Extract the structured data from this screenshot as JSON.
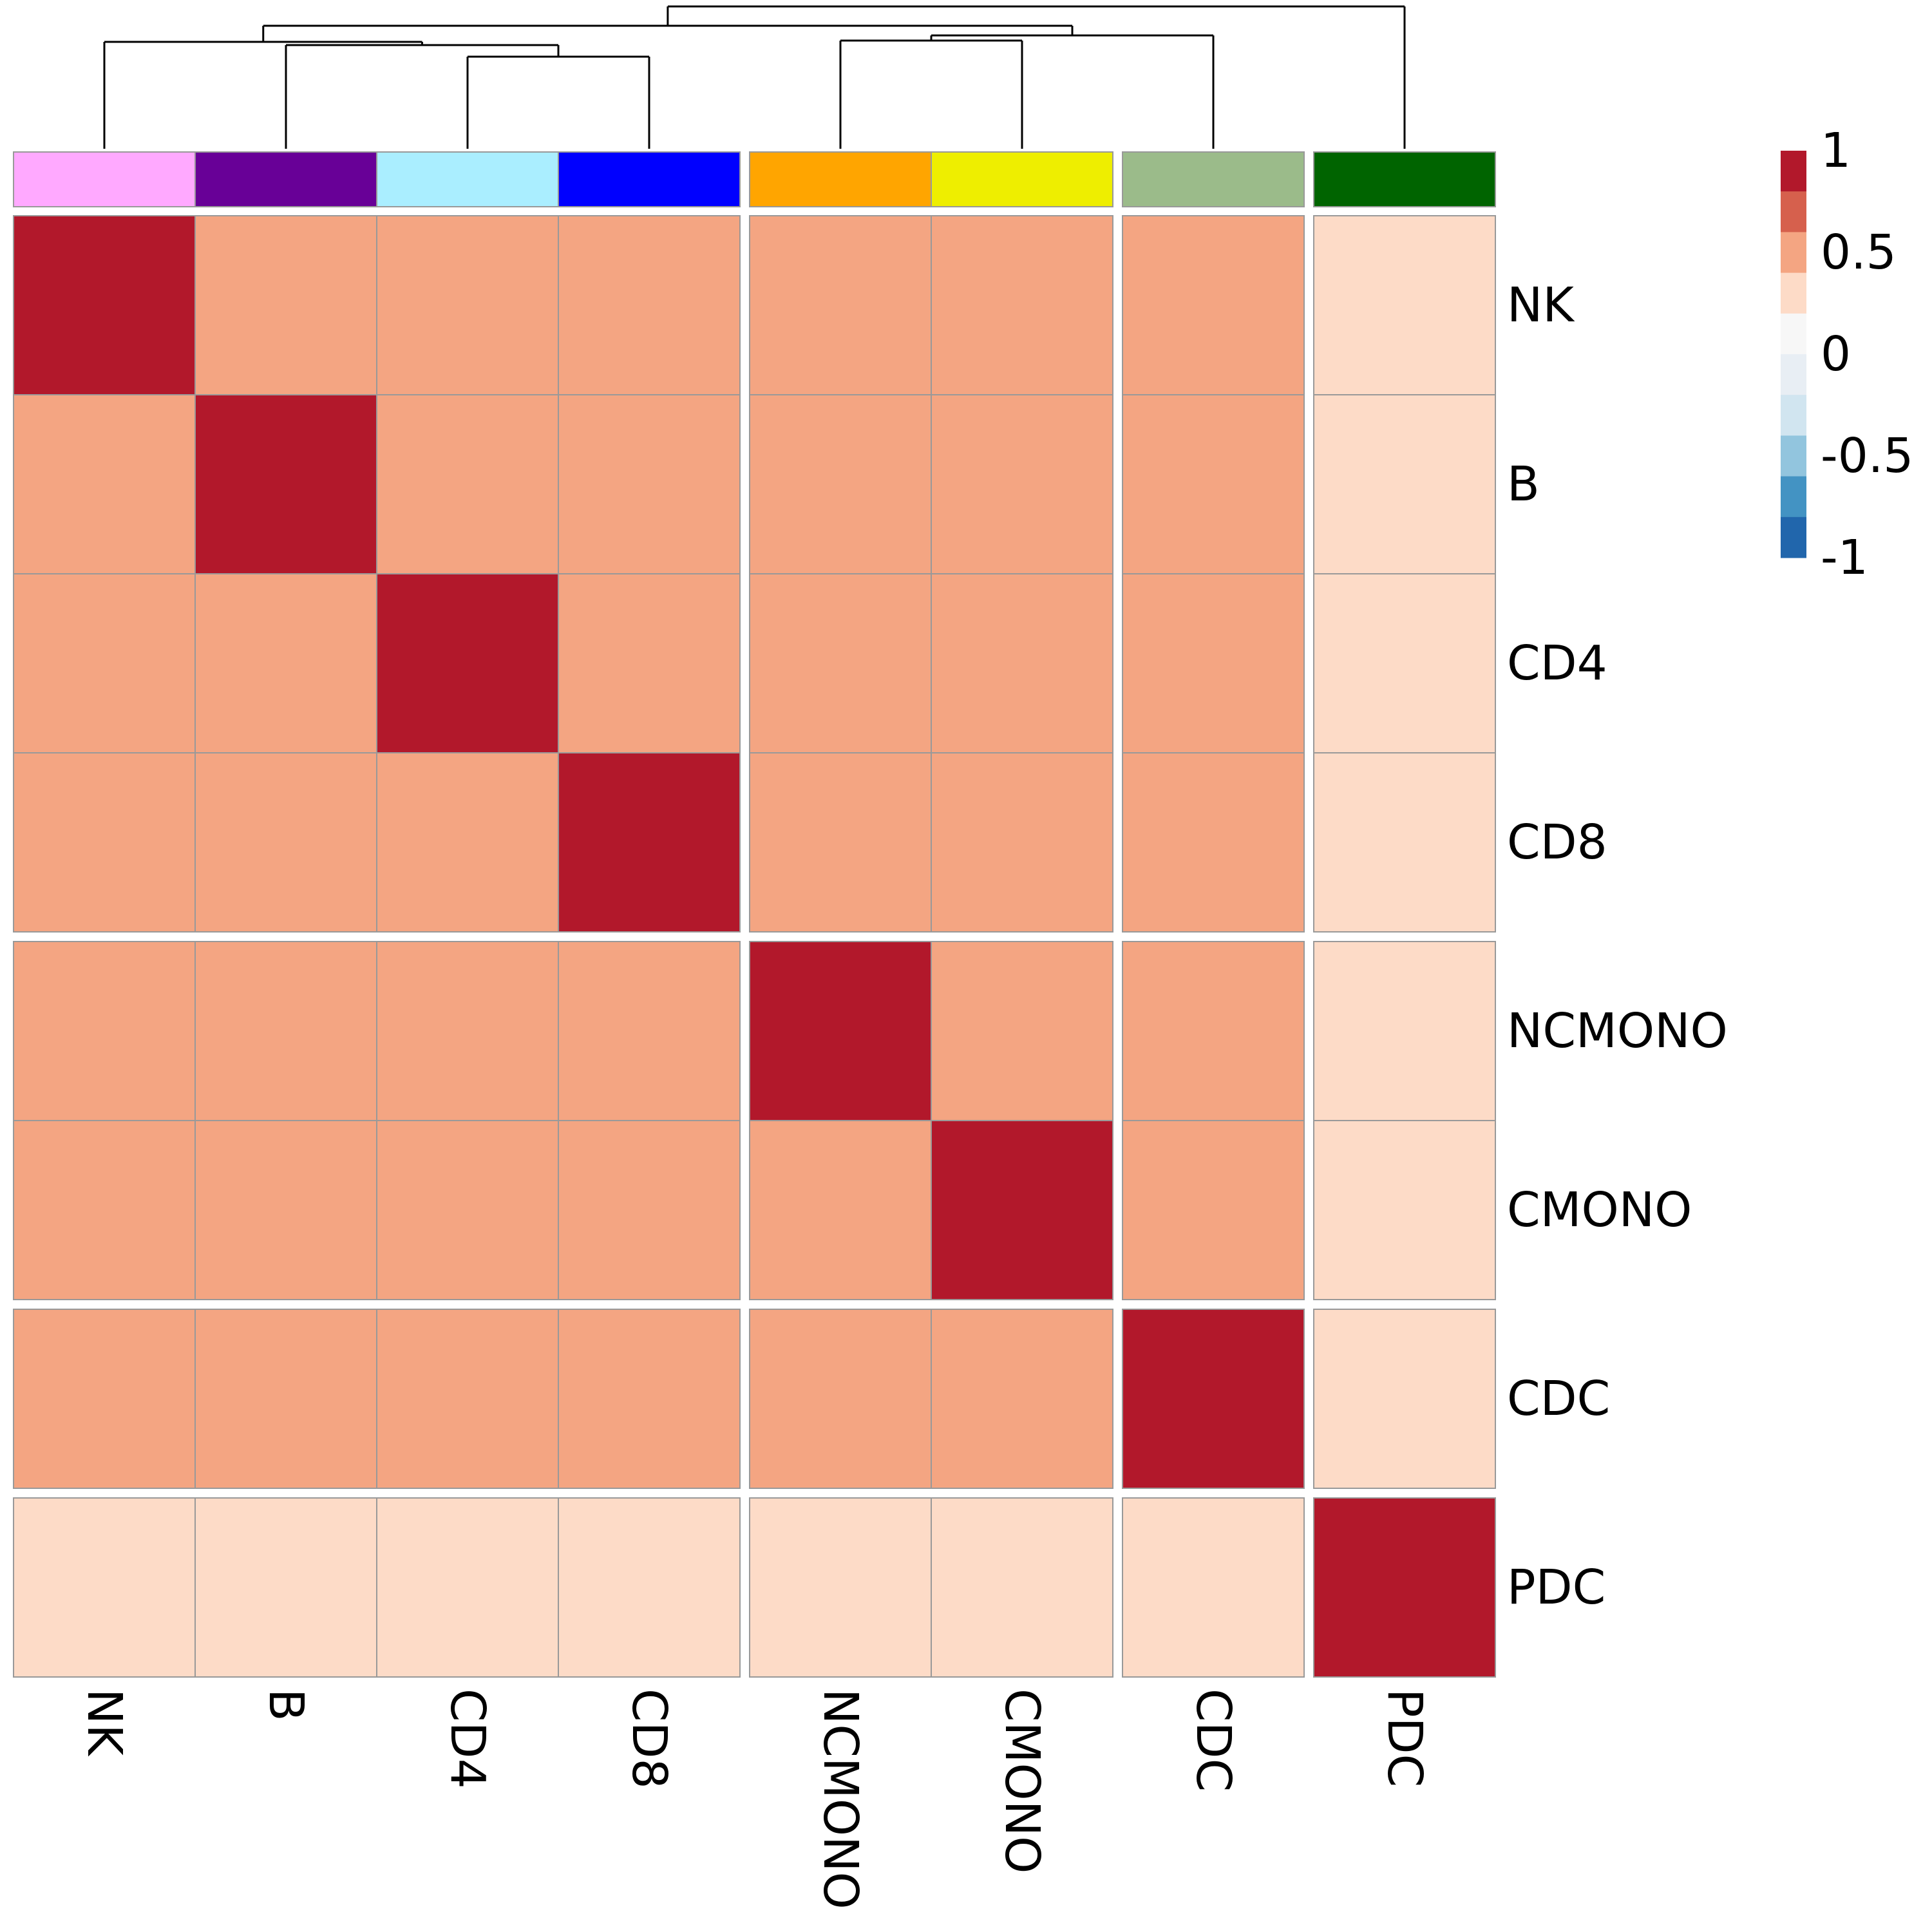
{
  "chart_data": {
    "type": "heatmap",
    "title": "",
    "rows": [
      "NK",
      "B",
      "CD4",
      "CD8",
      "NCMONO",
      "CMONO",
      "CDC",
      "PDC"
    ],
    "columns": [
      "NK",
      "B",
      "CD4",
      "CD8",
      "NCMONO",
      "CMONO",
      "CDC",
      "PDC"
    ],
    "values": [
      [
        1.0,
        0.5,
        0.5,
        0.5,
        0.5,
        0.5,
        0.5,
        0.25
      ],
      [
        0.5,
        1.0,
        0.5,
        0.5,
        0.5,
        0.5,
        0.5,
        0.25
      ],
      [
        0.5,
        0.5,
        1.0,
        0.5,
        0.5,
        0.5,
        0.5,
        0.25
      ],
      [
        0.5,
        0.5,
        0.5,
        1.0,
        0.5,
        0.5,
        0.5,
        0.25
      ],
      [
        0.5,
        0.5,
        0.5,
        0.5,
        1.0,
        0.5,
        0.5,
        0.25
      ],
      [
        0.5,
        0.5,
        0.5,
        0.5,
        0.5,
        1.0,
        0.5,
        0.25
      ],
      [
        0.5,
        0.5,
        0.5,
        0.5,
        0.5,
        0.5,
        1.0,
        0.25
      ],
      [
        0.25,
        0.25,
        0.25,
        0.25,
        0.25,
        0.25,
        0.25,
        1.0
      ]
    ],
    "row_groups": [
      [
        0,
        3
      ],
      [
        4,
        5
      ],
      [
        6,
        6
      ],
      [
        7,
        7
      ]
    ],
    "column_groups": [
      [
        0,
        3
      ],
      [
        4,
        5
      ],
      [
        6,
        6
      ],
      [
        7,
        7
      ]
    ],
    "column_annotation_colors": [
      "#ffa9ff",
      "#680097",
      "#aaeeff",
      "#0000ff",
      "#ffa500",
      "#eeee00",
      "#9bbb8a",
      "#006400"
    ],
    "colorbar": {
      "range": [
        -1,
        1
      ],
      "ticks": [
        "1",
        "0.5",
        "0",
        "-0.5",
        "-1"
      ],
      "colors": [
        "#b2182b",
        "#d6604d",
        "#f4a582",
        "#fddbc7",
        "#f7f7f7",
        "#e8eef4",
        "#d1e5f0",
        "#92c5de",
        "#4393c3",
        "#2166ac"
      ]
    },
    "legend_position": "top-right",
    "cell_border_color": "#999999"
  }
}
